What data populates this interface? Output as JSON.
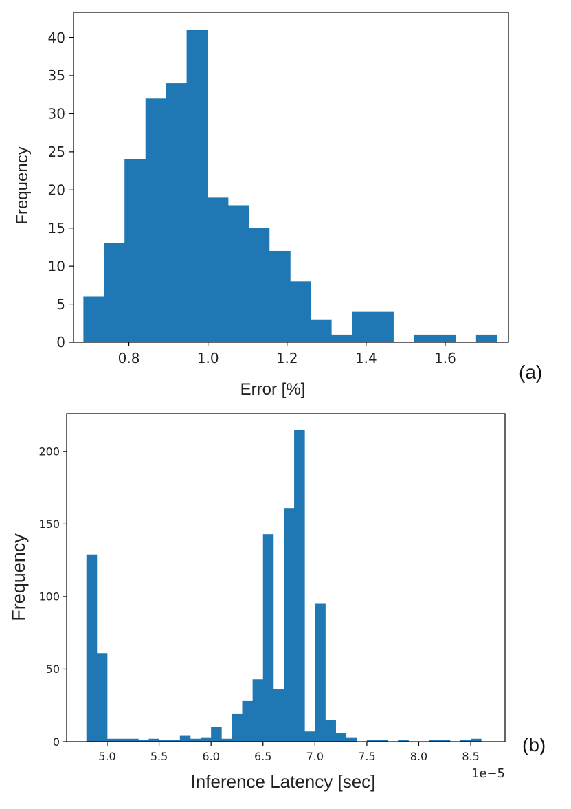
{
  "chart_data": [
    {
      "type": "bar",
      "panel_label": "(a)",
      "xlabel": "Error [%]",
      "ylabel": "Frequency",
      "xlim": [
        0.66,
        1.76
      ],
      "ylim": [
        0,
        43.3
      ],
      "xticks": [
        0.8,
        1.0,
        1.2,
        1.4,
        1.6
      ],
      "xtick_labels": [
        "0.8",
        "1.0",
        "1.2",
        "1.4",
        "1.6"
      ],
      "yticks": [
        0,
        5,
        10,
        15,
        20,
        25,
        30,
        35,
        40
      ],
      "ytick_labels": [
        "0",
        "5",
        "10",
        "15",
        "20",
        "25",
        "30",
        "35",
        "40"
      ],
      "grid": false,
      "color": "#1f77b4",
      "bin_edges": [
        0.685,
        0.737,
        0.789,
        0.842,
        0.894,
        0.946,
        0.999,
        1.051,
        1.103,
        1.155,
        1.208,
        1.26,
        1.312,
        1.364,
        1.417,
        1.469,
        1.521,
        1.573,
        1.626,
        1.678,
        1.73
      ],
      "values": [
        6,
        13,
        24,
        32,
        34,
        41,
        19,
        18,
        15,
        12,
        8,
        3,
        1,
        4,
        4,
        0,
        1,
        1,
        0,
        1
      ]
    },
    {
      "type": "bar",
      "panel_label": "(b)",
      "xlabel": "Inference Latency [sec]",
      "ylabel": "Frequency",
      "offset_text": "1e−5",
      "xlim": [
        4.61,
        8.83
      ],
      "ylim": [
        0,
        226
      ],
      "xticks": [
        5.0,
        5.5,
        6.0,
        6.5,
        7.0,
        7.5,
        8.0,
        8.5
      ],
      "xtick_labels": [
        "5.0",
        "5.5",
        "6.0",
        "6.5",
        "7.0",
        "7.5",
        "8.0",
        "8.5"
      ],
      "yticks": [
        0,
        50,
        100,
        150,
        200
      ],
      "ytick_labels": [
        "0",
        "50",
        "100",
        "150",
        "200"
      ],
      "grid": false,
      "color": "#1f77b4",
      "bin_edges": [
        4.8,
        4.9,
        5.0,
        5.1,
        5.2,
        5.3,
        5.4,
        5.5,
        5.6,
        5.7,
        5.8,
        5.9,
        6.0,
        6.1,
        6.2,
        6.3,
        6.4,
        6.5,
        6.6,
        6.7,
        6.8,
        6.9,
        7.0,
        7.1,
        7.2,
        7.3,
        7.4,
        7.5,
        7.6,
        7.7,
        7.8,
        7.9,
        8.0,
        8.1,
        8.2,
        8.3,
        8.4,
        8.5,
        8.6,
        8.7
      ],
      "values": [
        129,
        61,
        2,
        2,
        2,
        1,
        2,
        1,
        1,
        4,
        2,
        3,
        10,
        2,
        19,
        28,
        43,
        143,
        36,
        161,
        215,
        7,
        95,
        15,
        6,
        3,
        0,
        1,
        1,
        0,
        1,
        0,
        0,
        1,
        1,
        0,
        1,
        2,
        0
      ]
    }
  ]
}
